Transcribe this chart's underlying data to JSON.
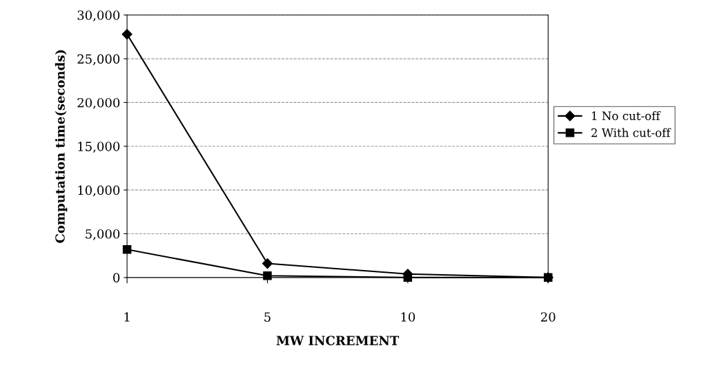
{
  "chart_data": {
    "type": "line",
    "xlabel": "MW INCREMENT",
    "ylabel": "Computation time(seconds)",
    "categories": [
      "1",
      "5",
      "10",
      "20"
    ],
    "series": [
      {
        "name": "1 No cut-off",
        "color": "#000000",
        "marker": "diamond",
        "values": [
          27800,
          1600,
          400,
          0
        ]
      },
      {
        "name": "2 With cut-off",
        "color": "#000000",
        "marker": "square",
        "values": [
          3200,
          200,
          0,
          0
        ]
      }
    ],
    "ylim": [
      0,
      30000
    ],
    "yticks": [
      {
        "value": 0,
        "label": "0"
      },
      {
        "value": 5000,
        "label": "5,000"
      },
      {
        "value": 10000,
        "label": "10,000"
      },
      {
        "value": 15000,
        "label": "15,000"
      },
      {
        "value": 20000,
        "label": "20,000"
      },
      {
        "value": 25000,
        "label": "25,000"
      },
      {
        "value": 30000,
        "label": "30,000"
      }
    ],
    "grid": "y",
    "legend": "right",
    "line_style": "solid"
  }
}
